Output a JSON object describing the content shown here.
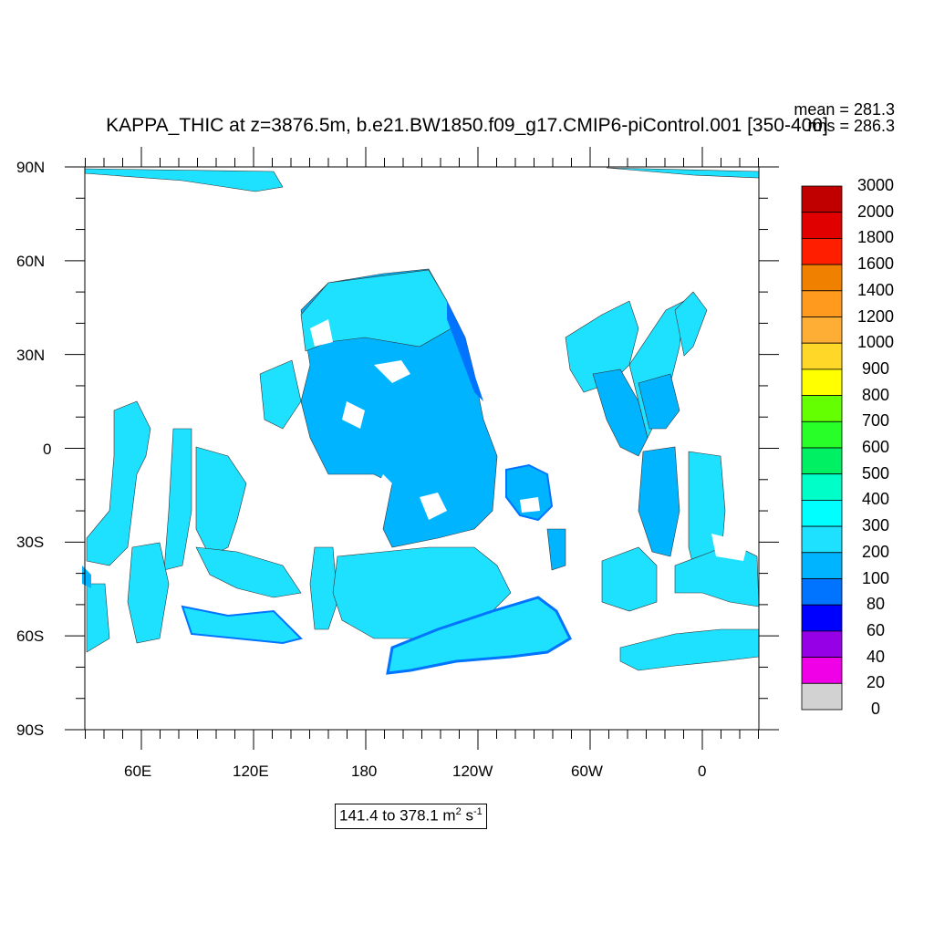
{
  "title": "KAPPA_THIC at z=3876.5m, b.e21.BW1850.f09_g17.CMIP6-piControl.001 [350-400]",
  "stats": {
    "mean": "mean = 281.3",
    "rms": "rms = 286.3"
  },
  "range": {
    "text": "141.4 to 378.1 m",
    "unit_exp": "2",
    "unit_s": " s",
    "unit_s_exp": "-1"
  },
  "axes": {
    "y_labels": [
      "90N",
      "60N",
      "30N",
      "0",
      "30S",
      "60S",
      "90S"
    ],
    "x_labels": [
      "60E",
      "120E",
      "180",
      "120W",
      "60W",
      "0"
    ]
  },
  "colorbar": {
    "labels": [
      "3000",
      "2000",
      "1800",
      "1600",
      "1400",
      "1200",
      "1000",
      "900",
      "800",
      "700",
      "600",
      "500",
      "400",
      "300",
      "200",
      "100",
      "80",
      "60",
      "40",
      "20",
      "0"
    ],
    "colors": [
      "#c00000",
      "#e00000",
      "#ff1e00",
      "#f08000",
      "#ff9a1e",
      "#ffae35",
      "#ffd728",
      "#ffff00",
      "#64ff00",
      "#28ff28",
      "#00f064",
      "#00ffc8",
      "#00ffff",
      "#1ee1ff",
      "#00b4ff",
      "#0073ff",
      "#0000ff",
      "#9600e6",
      "#f000e6",
      "#d2d2d2",
      "#707070"
    ]
  },
  "map_colors": {
    "band_300_400": "#1ee1ff",
    "band_200_300": "#00b4ff",
    "band_100_200": "#0073ff",
    "land": "#ffffff"
  }
}
